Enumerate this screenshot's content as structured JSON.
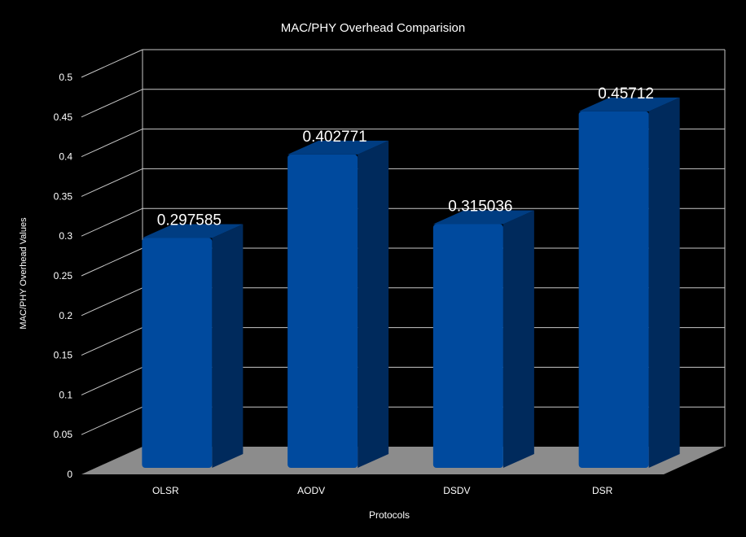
{
  "chart_data": {
    "type": "bar",
    "title": "MAC/PHY Overhead Comparision",
    "xlabel": "Protocols",
    "ylabel": "MAC/PHY Overhead Values",
    "categories": [
      "OLSR",
      "AODV",
      "DSDV",
      "DSR"
    ],
    "values": [
      0.297585,
      0.402771,
      0.315036,
      0.45712
    ],
    "data_labels": [
      "0.297585",
      "0.402771",
      "0.315036",
      "0.45712"
    ],
    "y_ticks": [
      "0",
      "0.05",
      "0.1",
      "0.15",
      "0.2",
      "0.25",
      "0.3",
      "0.35",
      "0.4",
      "0.45",
      "0.5"
    ],
    "ylim": [
      0,
      0.5
    ],
    "grid": true,
    "style": "3d",
    "colors": {
      "background": "#000000",
      "bar_front": "#004a9e",
      "bar_side": "#002a5c",
      "bar_top": "#003d82",
      "floor": "#8c8c8c",
      "grid": "#c8c8c8",
      "text": "#ffffff"
    }
  }
}
